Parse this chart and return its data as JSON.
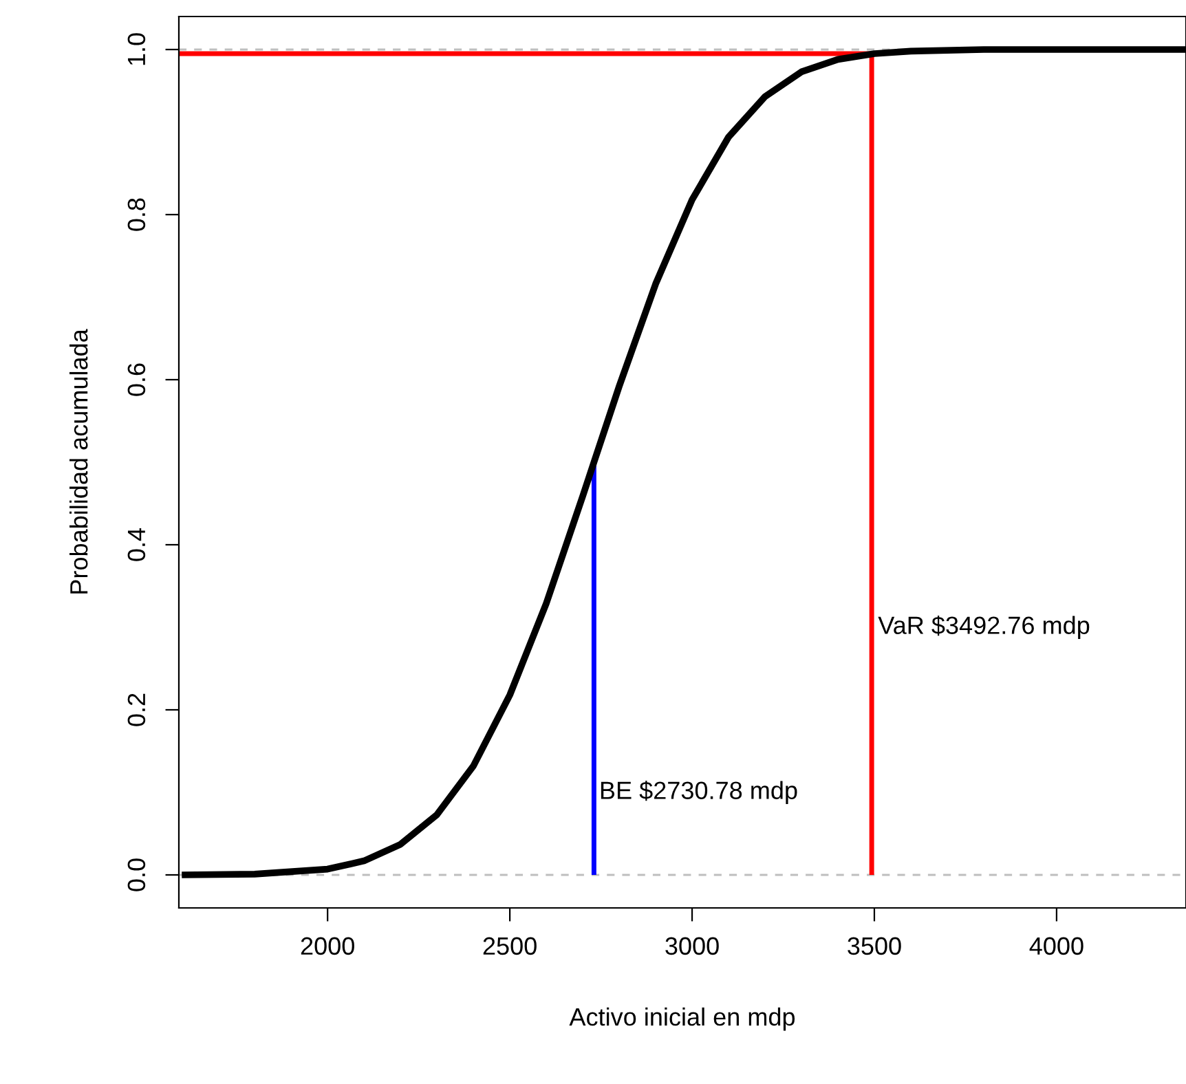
{
  "chart_data": {
    "type": "line",
    "xlabel": "Activo inicial en mdp",
    "ylabel": "Probabilidad acumulada",
    "xlim": [
      1592,
      4355
    ],
    "ylim": [
      -0.04,
      1.04
    ],
    "xticks": [
      2000,
      2500,
      3000,
      3500,
      4000
    ],
    "yticks": [
      {
        "value": 0,
        "label": "0.0"
      },
      {
        "value": 0.2,
        "label": "0.2"
      },
      {
        "value": 0.4,
        "label": "0.4"
      },
      {
        "value": 0.6,
        "label": "0.6"
      },
      {
        "value": 0.8,
        "label": "0.8"
      },
      {
        "value": 1,
        "label": "1.0"
      }
    ],
    "grid": false,
    "legend": false,
    "marker": "none",
    "series": [
      {
        "color": "#000000",
        "line_style": "solid",
        "x": [
          1600,
          1800,
          2000,
          2100,
          2200,
          2300,
          2400,
          2500,
          2600,
          2700,
          2730.78,
          2800,
          2900,
          3000,
          3100,
          3200,
          3300,
          3400,
          3500,
          3600,
          3800,
          4000,
          4355
        ],
        "values": [
          0,
          0.001,
          0.007,
          0.017,
          0.037,
          0.073,
          0.132,
          0.218,
          0.329,
          0.459,
          0.5,
          0.592,
          0.716,
          0.818,
          0.894,
          0.943,
          0.973,
          0.988,
          0.995,
          0.998,
          1,
          1,
          1
        ]
      },
      {
        "color": "#ff0000",
        "line_style": "solid",
        "x": [
          1592,
          3492.76,
          3492.76
        ],
        "values": [
          0.995,
          0.995,
          0
        ]
      },
      {
        "color": "#0000ff",
        "line_style": "solid",
        "x": [
          2730.78,
          2730.78
        ],
        "values": [
          0,
          0.5
        ]
      }
    ],
    "ref_lines": [
      {
        "axis": "y",
        "value": 0,
        "color": "#bebebe",
        "line_style": "dashed"
      },
      {
        "axis": "y",
        "value": 1,
        "color": "#bebebe",
        "line_style": "dashed"
      }
    ],
    "annotations": [
      {
        "text": "BE $2730.78 mdp",
        "x": 2745,
        "y": 0.1
      },
      {
        "text": "VaR $3492.76 mdp",
        "x": 3510,
        "y": 0.3
      }
    ]
  }
}
